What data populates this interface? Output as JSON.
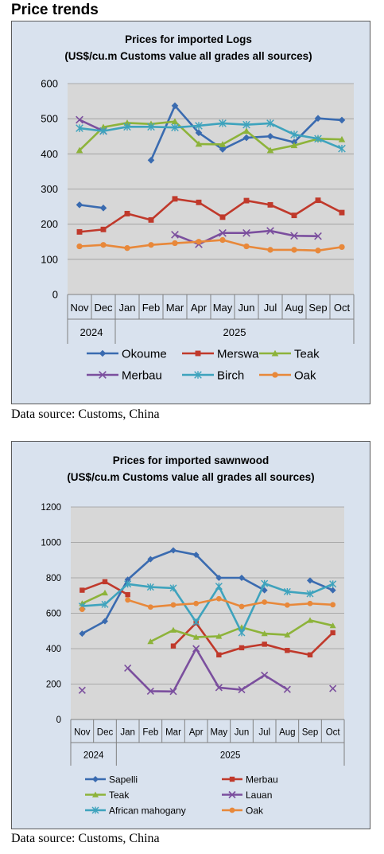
{
  "page": {
    "heading": "Price trends",
    "source_1": "Data source: Customs, China",
    "source_2": "Data source: Customs, China"
  },
  "chart_data": [
    {
      "type": "line",
      "title": "Prices for imported Logs",
      "subtitle": "(US$/cu.m Customs value all grades all sources)",
      "categories": [
        "Nov",
        "Dec",
        "Jan",
        "Feb",
        "Mar",
        "Apr",
        "May",
        "Jun",
        "Jul",
        "Aug",
        "Sep",
        "Oct"
      ],
      "year_groups": [
        {
          "label": "2024",
          "span": [
            0,
            1
          ]
        },
        {
          "label": "2025",
          "span": [
            2,
            11
          ]
        }
      ],
      "ylim": [
        0,
        600
      ],
      "yticks": [
        0,
        100,
        200,
        300,
        400,
        500,
        600
      ],
      "grid": true,
      "legend_position": "bottom",
      "legend_columns": 3,
      "series": [
        {
          "name": "Okoume",
          "color": "#3a6bb0",
          "marker": "diamond",
          "values": [
            255,
            246,
            null,
            382,
            537,
            460,
            413,
            446,
            450,
            433,
            501,
            496
          ]
        },
        {
          "name": "Merswa",
          "color": "#c0392b",
          "marker": "square",
          "values": [
            178,
            185,
            230,
            212,
            272,
            262,
            220,
            267,
            255,
            225,
            268,
            233
          ]
        },
        {
          "name": "Teak",
          "color": "#8db33a",
          "marker": "triangle",
          "values": [
            410,
            476,
            488,
            485,
            492,
            428,
            427,
            465,
            410,
            424,
            443,
            441
          ]
        },
        {
          "name": "Merbau",
          "color": "#7b4f9e",
          "marker": "x",
          "values": [
            497,
            465,
            null,
            null,
            170,
            143,
            175,
            175,
            181,
            167,
            166,
            null
          ]
        },
        {
          "name": "Birch",
          "color": "#3ea3bd",
          "marker": "asterisk",
          "values": [
            473,
            465,
            477,
            477,
            475,
            480,
            487,
            483,
            487,
            455,
            443,
            415
          ]
        },
        {
          "name": "Oak",
          "color": "#e8883a",
          "marker": "circle",
          "values": [
            137,
            141,
            132,
            141,
            146,
            150,
            155,
            137,
            127,
            127,
            125,
            135
          ]
        }
      ]
    },
    {
      "type": "line",
      "title": "Prices for imported sawnwood",
      "subtitle": "(US$/cu.m Customs value all grades all sources)",
      "categories": [
        "Nov",
        "Dec",
        "Jan",
        "Feb",
        "Mar",
        "Apr",
        "May",
        "Jun",
        "Jul",
        "Aug",
        "Sep",
        "Oct"
      ],
      "year_groups": [
        {
          "label": "2024",
          "span": [
            0,
            1
          ]
        },
        {
          "label": "2025",
          "span": [
            2,
            11
          ]
        }
      ],
      "ylim": [
        0,
        1200
      ],
      "yticks": [
        0,
        200,
        400,
        600,
        800,
        1000,
        1200
      ],
      "grid": true,
      "legend_position": "bottom",
      "legend_columns": 2,
      "series": [
        {
          "name": "Sapelli",
          "color": "#3a6bb0",
          "marker": "diamond",
          "values": [
            485,
            555,
            790,
            905,
            955,
            930,
            800,
            800,
            730,
            null,
            785,
            730
          ]
        },
        {
          "name": "Merbau",
          "color": "#c0392b",
          "marker": "square",
          "values": [
            730,
            778,
            705,
            null,
            415,
            545,
            365,
            405,
            425,
            390,
            365,
            490
          ]
        },
        {
          "name": "Teak",
          "color": "#8db33a",
          "marker": "triangle",
          "values": [
            655,
            715,
            null,
            440,
            505,
            465,
            470,
            520,
            485,
            478,
            560,
            530
          ]
        },
        {
          "name": "Lauan",
          "color": "#7b4f9e",
          "marker": "x",
          "values": [
            165,
            null,
            290,
            160,
            158,
            400,
            180,
            168,
            250,
            170,
            null,
            175
          ]
        },
        {
          "name": "African mahogany",
          "color": "#3ea3bd",
          "marker": "asterisk",
          "values": [
            640,
            650,
            765,
            748,
            742,
            550,
            752,
            490,
            768,
            722,
            710,
            765
          ]
        },
        {
          "name": "Oak",
          "color": "#e8883a",
          "marker": "circle",
          "values": [
            622,
            null,
            675,
            635,
            647,
            655,
            682,
            638,
            663,
            646,
            655,
            648
          ]
        }
      ]
    }
  ]
}
